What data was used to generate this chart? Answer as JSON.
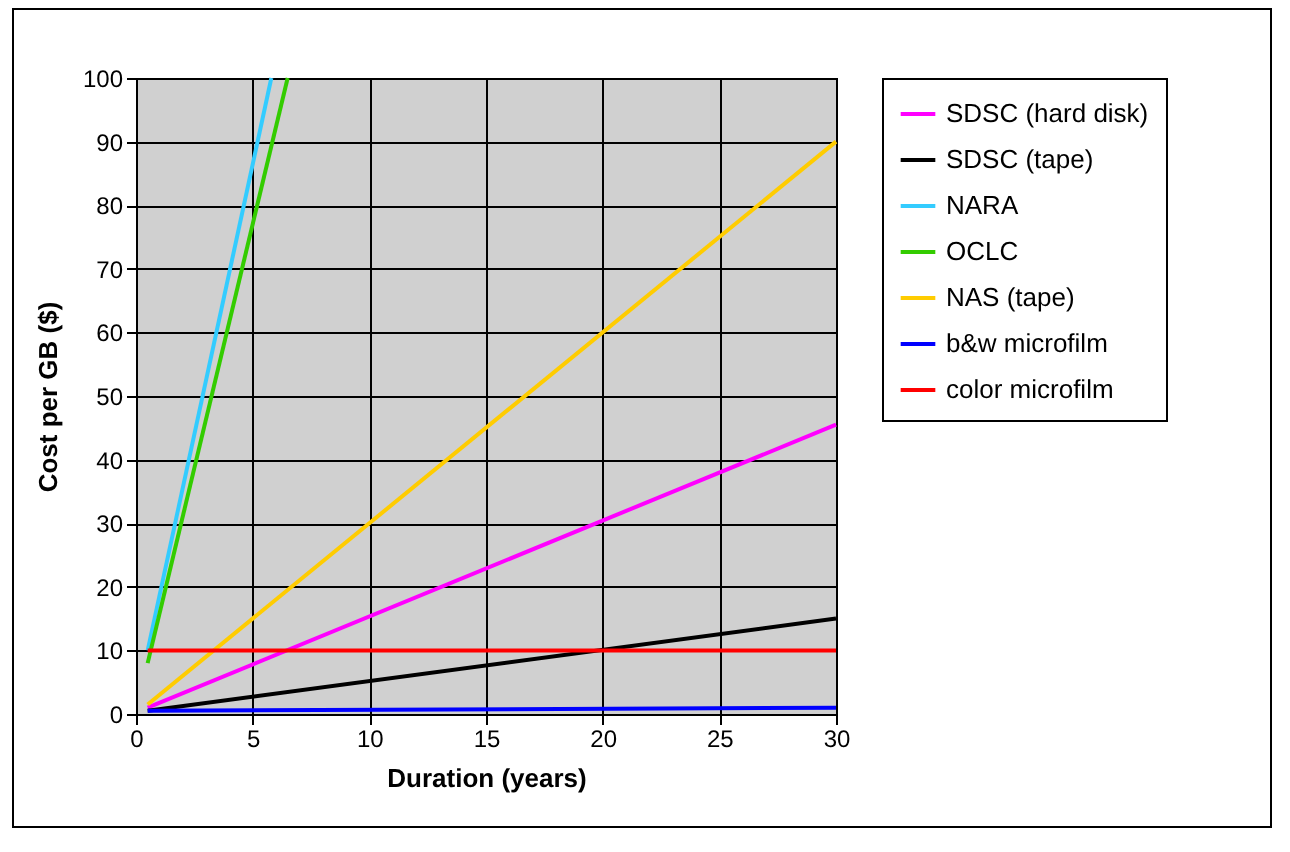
{
  "chart_data": {
    "type": "line",
    "xlabel": "Duration (years)",
    "ylabel": "Cost per GB ($)",
    "xlim": [
      0,
      30
    ],
    "xticks": [
      0,
      5,
      10,
      15,
      20,
      25,
      30
    ],
    "ylim": [
      0,
      100
    ],
    "yticks": [
      0,
      10,
      20,
      30,
      40,
      50,
      60,
      70,
      80,
      90,
      100
    ],
    "grid": true,
    "legend": "right",
    "marker": "none",
    "series": [
      {
        "name": "SDSC (hard disk)",
        "color": "#ff00ff",
        "x": [
          0.5,
          30
        ],
        "values": [
          1,
          45.5
        ]
      },
      {
        "name": "SDSC (tape)",
        "color": "#000000",
        "x": [
          0.5,
          30
        ],
        "values": [
          0.5,
          15
        ]
      },
      {
        "name": "NARA",
        "color": "#33ccff",
        "x": [
          0.5,
          5.8
        ],
        "values": [
          10,
          100
        ]
      },
      {
        "name": "OCLC",
        "color": "#33cc00",
        "x": [
          0.5,
          6.5
        ],
        "values": [
          8,
          100
        ]
      },
      {
        "name": "NAS (tape)",
        "color": "#ffcc00",
        "x": [
          0.5,
          30
        ],
        "values": [
          1.5,
          90
        ]
      },
      {
        "name": "b&w microfilm",
        "color": "#0000ff",
        "x": [
          0.5,
          30
        ],
        "values": [
          0.5,
          1
        ]
      },
      {
        "name": "color microfilm",
        "color": "#ff0000",
        "x": [
          0.5,
          30
        ],
        "values": [
          10,
          10
        ]
      }
    ]
  }
}
